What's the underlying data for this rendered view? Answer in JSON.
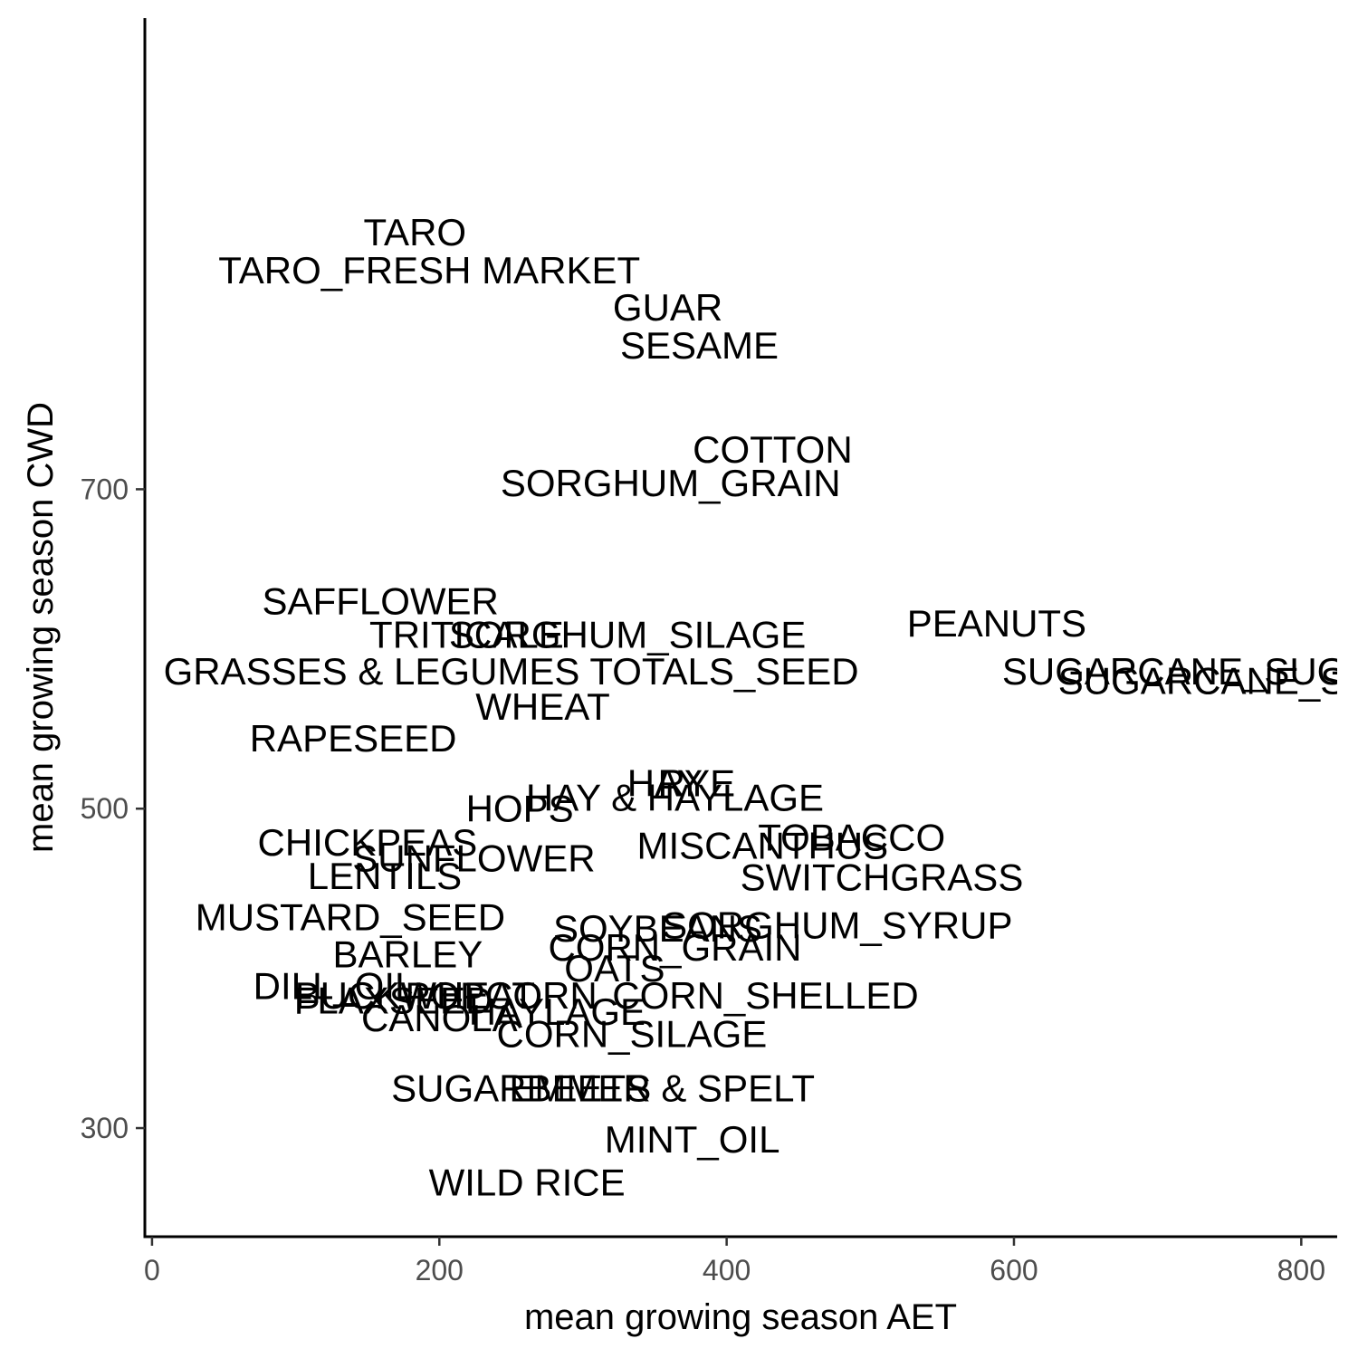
{
  "chart_data": {
    "type": "scatter",
    "xlabel": "mean growing season AET",
    "ylabel": "mean growing season CWD",
    "xlim": [
      -5,
      825
    ],
    "ylim": [
      232,
      995
    ],
    "x_ticks": [
      0,
      200,
      400,
      600,
      800
    ],
    "y_ticks": [
      300,
      500,
      700
    ],
    "grid": false,
    "points": [
      {
        "label": "TARO",
        "x": 183,
        "y": 861
      },
      {
        "label": "TARO_FRESH MARKET",
        "x": 193,
        "y": 837
      },
      {
        "label": "GUAR",
        "x": 359,
        "y": 814
      },
      {
        "label": "SESAME",
        "x": 381,
        "y": 790
      },
      {
        "label": "COTTON",
        "x": 432,
        "y": 725
      },
      {
        "label": "SORGHUM_GRAIN",
        "x": 361,
        "y": 704
      },
      {
        "label": "SAFFLOWER",
        "x": 159,
        "y": 630
      },
      {
        "label": "TRITICALE",
        "x": 219,
        "y": 609
      },
      {
        "label": "SORGHUM_SILAGE",
        "x": 331,
        "y": 609
      },
      {
        "label": "PEANUTS",
        "x": 588,
        "y": 616
      },
      {
        "label": "GRASSES & LEGUMES TOTALS_SEED",
        "x": 250,
        "y": 586
      },
      {
        "label": "SUGARCANE_SUGAR",
        "x": 730,
        "y": 586
      },
      {
        "label": "SUGARCANE_SEED",
        "x": 758,
        "y": 580
      },
      {
        "label": "WHEAT",
        "x": 272,
        "y": 564
      },
      {
        "label": "RAPESEED",
        "x": 140,
        "y": 544
      },
      {
        "label": "RYE",
        "x": 379,
        "y": 516
      },
      {
        "label": "HAY",
        "x": 357,
        "y": 516
      },
      {
        "label": "HAY & HAYLAGE",
        "x": 364,
        "y": 507
      },
      {
        "label": "HOPS",
        "x": 256,
        "y": 500
      },
      {
        "label": "TOBACCO",
        "x": 487,
        "y": 482
      },
      {
        "label": "CHICKPEAS",
        "x": 150,
        "y": 479
      },
      {
        "label": "MISCANTHUS",
        "x": 425,
        "y": 477
      },
      {
        "label": "SUNFLOWER",
        "x": 224,
        "y": 469
      },
      {
        "label": "LENTILS",
        "x": 162,
        "y": 458
      },
      {
        "label": "SWITCHGRASS",
        "x": 508,
        "y": 457
      },
      {
        "label": "MUSTARD_SEED",
        "x": 138,
        "y": 432
      },
      {
        "label": "SORGHUM_SYRUP",
        "x": 477,
        "y": 427
      },
      {
        "label": "SOYBEANS",
        "x": 352,
        "y": 425
      },
      {
        "label": "CORN_GRAIN",
        "x": 364,
        "y": 413
      },
      {
        "label": "BARLEY",
        "x": 178,
        "y": 409
      },
      {
        "label": "OATS",
        "x": 322,
        "y": 400
      },
      {
        "label": "DILL_OIL",
        "x": 127,
        "y": 389
      },
      {
        "label": "CORN_SHELLED",
        "x": 427,
        "y": 383
      },
      {
        "label": "BUCKWHEAT",
        "x": 183,
        "y": 383
      },
      {
        "label": "POPCORN",
        "x": 243,
        "y": 383
      },
      {
        "label": "FLAXSEED",
        "x": 168,
        "y": 380
      },
      {
        "label": "HAYLAGE",
        "x": 282,
        "y": 373
      },
      {
        "label": "CANOLA",
        "x": 200,
        "y": 369
      },
      {
        "label": "CORN_SILAGE",
        "x": 334,
        "y": 359
      },
      {
        "label": "SUGARBEETS",
        "x": 257,
        "y": 325
      },
      {
        "label": "EMMER & SPELT",
        "x": 355,
        "y": 325
      },
      {
        "label": "MINT_OIL",
        "x": 376,
        "y": 293
      },
      {
        "label": "WILD RICE",
        "x": 261,
        "y": 266
      }
    ]
  }
}
